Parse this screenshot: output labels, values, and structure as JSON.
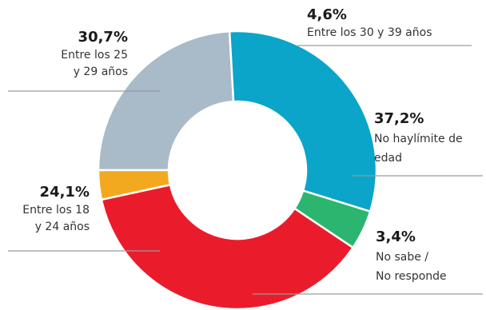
{
  "chart_data": {
    "type": "pie",
    "donut": true,
    "start_angle_deg": 180,
    "direction": "clockwise",
    "slices": [
      {
        "id": "slice-24-1",
        "value": 24.1,
        "pct_label": "24,1%",
        "label_lines": [
          "Entre los 18",
          "y 24 años"
        ],
        "color": "#a9bac9"
      },
      {
        "id": "slice-30-7",
        "value": 30.7,
        "pct_label": "30,7%",
        "label_lines": [
          "Entre los 25",
          "y 29 años"
        ],
        "color": "#0aa5c9"
      },
      {
        "id": "slice-4-6",
        "value": 4.6,
        "pct_label": "4,6%",
        "label_lines": [
          "Entre los 30 y 39 años"
        ],
        "color": "#2cb56e"
      },
      {
        "id": "slice-37-2",
        "value": 37.2,
        "pct_label": "37,2%",
        "label_lines": [
          "No haylímite de",
          "edad"
        ],
        "color": "#ea1c2c"
      },
      {
        "id": "slice-3-4",
        "value": 3.4,
        "pct_label": "3,4%",
        "label_lines": [
          "No sabe /",
          "No responde"
        ],
        "color": "#f2a91f"
      }
    ]
  }
}
